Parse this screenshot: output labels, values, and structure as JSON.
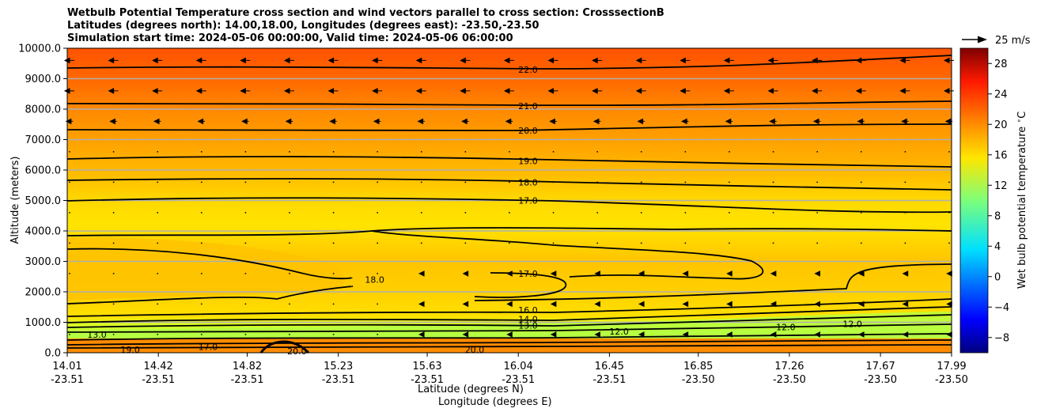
{
  "title_lines": [
    "Wetbulb Potential Temperature cross section and wind vectors parallel to cross section: CrosssectionB",
    "Latitudes (degrees north): 14.00,18.00, Longitudes (degrees east): -23.50,-23.50",
    "Simulation start time: 2024-05-06 00:00:00, Valid time: 2024-05-06 06:00:00"
  ],
  "chart_data": {
    "type": "heatmap",
    "ylabel": "Altitude (meters)",
    "xlabel": "Latitude (degrees N)",
    "xlabel2": "Longitude (degrees E)",
    "ylim": [
      0,
      10000
    ],
    "yticks": [
      "0.0",
      "1000.0",
      "2000.0",
      "3000.0",
      "4000.0",
      "5000.0",
      "6000.0",
      "7000.0",
      "8000.0",
      "9000.0",
      "10000.0"
    ],
    "xlim": [
      14.01,
      17.99
    ],
    "xticks_lat": [
      "14.01",
      "14.42",
      "14.82",
      "15.23",
      "15.63",
      "16.04",
      "16.45",
      "16.85",
      "17.26",
      "17.67",
      "17.99"
    ],
    "xticks_lon": [
      "-23.51",
      "-23.51",
      "-23.51",
      "-23.51",
      "-23.51",
      "-23.51",
      "-23.51",
      "-23.50",
      "-23.50",
      "-23.50",
      "-23.50"
    ],
    "grid": "horizontal",
    "colorbar": {
      "label": "Wet bulb potential temperature $^\\circ$C",
      "range": [
        -10,
        30
      ],
      "ticks": [
        "28",
        "24",
        "20",
        "16",
        "12",
        "8",
        "4",
        "0",
        "−4",
        "−8"
      ],
      "colormap": "jet"
    },
    "wind_key": "25 m/s",
    "contours": [
      {
        "level": "22.0",
        "label_pos": {
          "lat": 16.04,
          "alt": 9300
        }
      },
      {
        "level": "21.0",
        "label_pos": {
          "lat": 16.04,
          "alt": 8100
        }
      },
      {
        "level": "20.0",
        "label_pos": {
          "lat": 16.04,
          "alt": 7300
        }
      },
      {
        "level": "19.0",
        "label_pos": {
          "lat": 16.04,
          "alt": 6300
        }
      },
      {
        "level": "18.0",
        "label_pos": {
          "lat": 16.04,
          "alt": 5600
        }
      },
      {
        "level": "17.0",
        "label_pos": {
          "lat": 16.04,
          "alt": 5000
        }
      },
      {
        "level": "17.0",
        "label_pos": {
          "lat": 16.04,
          "alt": 2600
        }
      },
      {
        "level": "16.0",
        "label_pos": {
          "lat": 16.04,
          "alt": 1400
        }
      },
      {
        "level": "14.0",
        "label_pos": {
          "lat": 16.04,
          "alt": 1100
        }
      },
      {
        "level": "13.0",
        "label_pos": {
          "lat": 16.04,
          "alt": 900
        }
      },
      {
        "level": "18.0",
        "label_pos": {
          "lat": 15.35,
          "alt": 2400
        }
      },
      {
        "level": "12.0",
        "label_pos": {
          "lat": 16.45,
          "alt": 700
        }
      },
      {
        "level": "12.0",
        "label_pos": {
          "lat": 17.2,
          "alt": 850
        }
      },
      {
        "level": "12.0",
        "label_pos": {
          "lat": 17.5,
          "alt": 950
        }
      },
      {
        "level": "20.0",
        "label_pos": {
          "lat": 15.0,
          "alt": 50
        }
      },
      {
        "level": "20.0",
        "label_pos": {
          "lat": 15.8,
          "alt": 100
        }
      },
      {
        "level": "19.0",
        "label_pos": {
          "lat": 14.25,
          "alt": 100
        }
      },
      {
        "level": "17.0",
        "label_pos": {
          "lat": 14.6,
          "alt": 200
        }
      },
      {
        "level": "13.0",
        "label_pos": {
          "lat": 14.1,
          "alt": 600
        }
      }
    ]
  },
  "colors": {
    "hot": "#ff5500",
    "warm": "#ffa000",
    "mid": "#ffe600",
    "cool": "#c8ff30"
  }
}
